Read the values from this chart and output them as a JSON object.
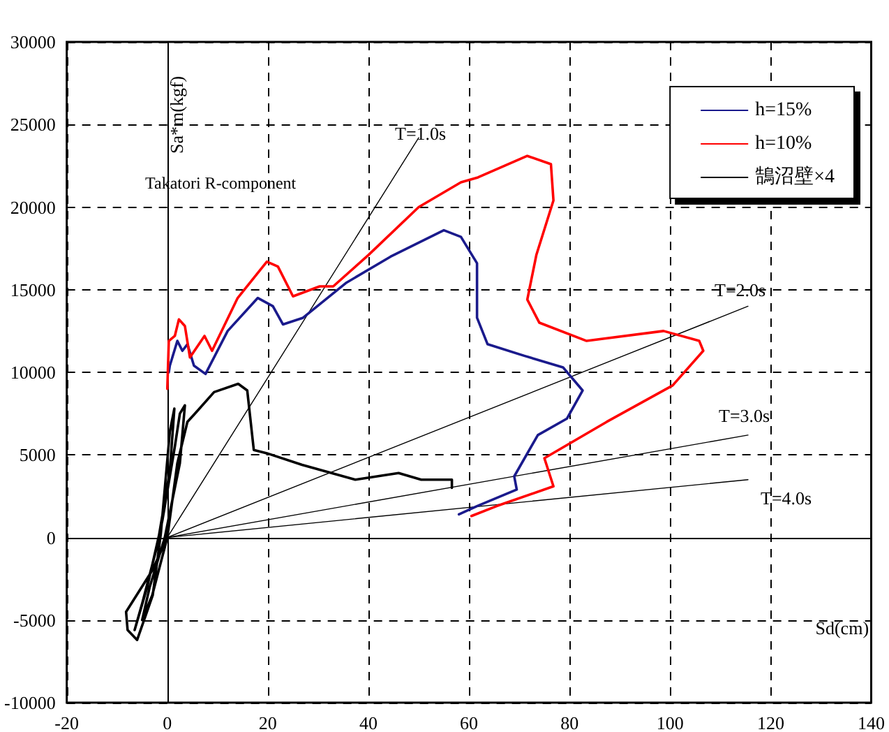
{
  "chart_data": {
    "type": "line",
    "xlabel": "Sd(cm)",
    "ylabel": "Sa*m(kgf)",
    "xlim": [
      -20,
      140
    ],
    "xticks": [
      -20,
      0,
      20,
      40,
      60,
      80,
      100,
      120,
      140
    ],
    "ylim": [
      -10000,
      30000
    ],
    "yticks": [
      -10000,
      -5000,
      0,
      5000,
      10000,
      15000,
      20000,
      25000,
      30000
    ],
    "grid": true,
    "legend": "top right",
    "marker": "none",
    "line_style": "solid",
    "annotations": [
      "Takatori R-component",
      "T=1.0s",
      "T=2.0s",
      "T=3.0s",
      "T=4.0s"
    ],
    "series": [
      {
        "name": "h=15%",
        "color": "#1a1a8c",
        "x": [
          0.3,
          0.5,
          2,
          3,
          4,
          5.3,
          7.6,
          12,
          18,
          21,
          23,
          27,
          35.5,
          44.4,
          55,
          58.4,
          61.6,
          61.6,
          63.7,
          71,
          78.7,
          82.6,
          79.5,
          73.7,
          69,
          69.5,
          61.6,
          58
        ],
        "values": [
          10000,
          10400,
          11900,
          11300,
          11700,
          10400,
          9900,
          12500,
          14500,
          14000,
          12900,
          13300,
          15400,
          17000,
          18600,
          18200,
          16600,
          13300,
          11700,
          11000,
          10300,
          8900,
          7200,
          6200,
          3700,
          2900,
          1900,
          1400
        ]
      },
      {
        "name": "h=10%",
        "color": "#ff0000",
        "x": [
          0,
          0.3,
          1.5,
          2.3,
          3.5,
          4.5,
          7.4,
          8.9,
          14,
          19.8,
          22,
          25,
          30.3,
          33,
          40,
          50,
          58.4,
          61.8,
          71.6,
          76.3,
          76.8,
          73.4,
          71.6,
          74,
          83.4,
          98.7,
          105.8,
          106.6,
          100.5,
          87.4,
          75,
          76.8,
          65.5,
          60.5
        ],
        "values": [
          9000,
          11900,
          12200,
          13200,
          12800,
          10900,
          12200,
          11300,
          14500,
          16700,
          16400,
          14600,
          15200,
          15200,
          17100,
          20000,
          21500,
          21800,
          23100,
          22600,
          20400,
          17100,
          14400,
          13000,
          11900,
          12500,
          11900,
          11300,
          9200,
          7000,
          4800,
          3100,
          1900,
          1300
        ]
      },
      {
        "name": "鵠沼壁×4",
        "color": "#000000",
        "x": [
          0,
          -3,
          -8.2,
          -7.9,
          -6,
          -2.9,
          -1.3,
          0.5,
          1.4,
          0.5,
          -2,
          -5,
          -6.5,
          -4,
          -1,
          1.5,
          2.5,
          3.5,
          2.5,
          -0.5,
          -3.5,
          -5,
          -3,
          0,
          2,
          4,
          5.8,
          9.3,
          14.1,
          15.9,
          17.2,
          19.8,
          26.8,
          37.4,
          46,
          50.5,
          56.6,
          56.6
        ],
        "values": [
          0,
          -2000,
          -4500,
          -5600,
          -6200,
          -3500,
          200,
          6400,
          7800,
          4000,
          -500,
          -4000,
          -5600,
          -3000,
          1000,
          5500,
          7500,
          8000,
          4500,
          0,
          -3000,
          -5000,
          -3500,
          0,
          4500,
          7000,
          7600,
          8800,
          9300,
          8900,
          5300,
          5100,
          4400,
          3500,
          3900,
          3500,
          3500,
          3000
        ]
      },
      {
        "color": "#000000",
        "x": [
          0,
          50
        ],
        "values": [
          0,
          24200
        ]
      },
      {
        "color": "#000000",
        "x": [
          0,
          115.5
        ],
        "values": [
          0,
          14000
        ]
      },
      {
        "color": "#000000",
        "x": [
          0,
          115.5
        ],
        "values": [
          0,
          6200
        ]
      },
      {
        "color": "#000000",
        "x": [
          0,
          115.5
        ],
        "values": [
          0,
          3500
        ]
      }
    ]
  }
}
